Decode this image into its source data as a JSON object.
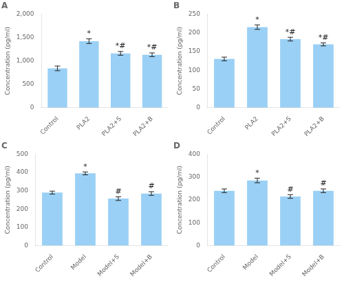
{
  "chart_data": [
    {
      "type": "bar",
      "title": "A",
      "categories": [
        "Control",
        "PLA2",
        "PLA2+S",
        "PLA2+B"
      ],
      "values": [
        840,
        1420,
        1160,
        1130
      ],
      "errors": [
        50,
        50,
        40,
        40
      ],
      "ylim": [
        0,
        2000
      ],
      "yticks": [
        0,
        500,
        1000,
        1500,
        2000
      ],
      "ylabel": "Concentration (pg/ml)",
      "annotations": [
        null,
        "*",
        "*#",
        "*#"
      ],
      "grid": false
    },
    {
      "type": "bar",
      "title": "B",
      "categories": [
        "Control",
        "PLA2",
        "PLA2+S",
        "PLA2+B"
      ],
      "values": [
        130,
        215,
        183,
        169
      ],
      "errors": [
        5,
        6,
        5,
        4
      ],
      "ylim": [
        0,
        250
      ],
      "yticks": [
        0,
        50,
        100,
        150,
        200,
        250
      ],
      "ylabel": "Concentration (pg/ml)",
      "annotations": [
        null,
        "*",
        "*#",
        "*#"
      ],
      "grid": false
    },
    {
      "type": "bar",
      "title": "C",
      "categories": [
        "Control",
        "Model",
        "Model+S",
        "Model+B"
      ],
      "values": [
        290,
        395,
        257,
        285
      ],
      "errors": [
        8,
        8,
        10,
        10
      ],
      "ylim": [
        0,
        500
      ],
      "yticks": [
        0,
        100,
        200,
        300,
        400,
        500
      ],
      "ylabel": "Concentration (pg/ml)",
      "annotations": [
        null,
        "*",
        "#",
        "#"
      ],
      "grid": false
    },
    {
      "type": "bar",
      "title": "D",
      "categories": [
        "Control",
        "Model",
        "Model+S",
        "Model+B"
      ],
      "values": [
        240,
        285,
        215,
        240
      ],
      "errors": [
        8,
        10,
        8,
        8
      ],
      "ylim": [
        0,
        400
      ],
      "yticks": [
        0,
        100,
        200,
        300,
        400
      ],
      "ylabel": "Concentration (pg/ml)",
      "annotations": [
        null,
        "*",
        "#",
        "#"
      ],
      "grid": false
    }
  ]
}
